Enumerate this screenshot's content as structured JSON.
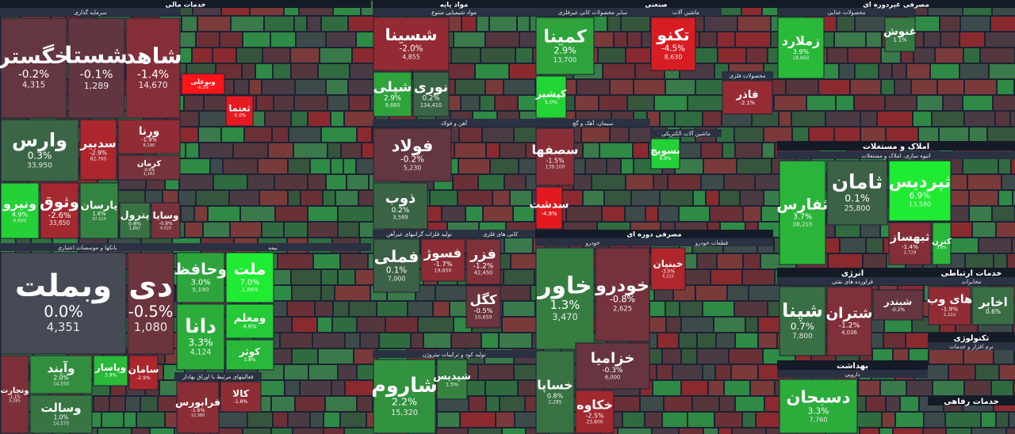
{
  "sectors": [
    {
      "title": "خدمات مالی",
      "groups": [
        {
          "title": "سرمایه گذاری",
          "tiles": [
            {
              "name": "خگستر",
              "change": -0.2,
              "change_label": "-0.2%",
              "volume": "4,315"
            },
            {
              "name": "شستا",
              "change": -0.1,
              "change_label": "-0.1%",
              "volume": "1,289"
            },
            {
              "name": "شاهد",
              "change": -1.4,
              "change_label": "-1.4%",
              "volume": "14,670"
            },
            {
              "name": "وارس",
              "change": 0.3,
              "change_label": "0.3%",
              "volume": "33,950"
            },
            {
              "name": "سدبیر",
              "change": -2.9,
              "change_label": "-2.9%",
              "volume": "82,700"
            },
            {
              "name": "ورنا",
              "change": -1.9,
              "change_label": "-1.9%",
              "volume": "6,190"
            },
            {
              "name": "کرمان",
              "change": -0.9,
              "change_label": "-0.9%",
              "volume": "1,142"
            },
            {
              "name": "ونیرو",
              "change": 4.9,
              "change_label": "4.9%",
              "volume": "6,600"
            },
            {
              "name": "وثوق",
              "change": -2.6,
              "change_label": "-2.6%",
              "volume": "33,850"
            },
            {
              "name": "پارسان",
              "change": 1.6,
              "change_label": "1.6%",
              "volume": "37,110"
            },
            {
              "name": "پترول",
              "change": 0.8,
              "change_label": "0.8%",
              "volume": "1,897"
            },
            {
              "name": "وسایا",
              "change": -0.9,
              "change_label": "-0.9%",
              "volume": "4,020"
            },
            {
              "name": "ویوعلی",
              "change": -6.3,
              "change_label": "-6.3%"
            },
            {
              "name": "ثعتما",
              "change": -5.0,
              "change_label": "-5.0%"
            }
          ]
        },
        {
          "title": "بانکها و موسسات اعتباری",
          "tiles": [
            {
              "name": "وبملت",
              "change": 0.0,
              "change_label": "0.0%",
              "volume": "4,351"
            },
            {
              "name": "دی",
              "change": -0.5,
              "change_label": "-0.5%",
              "volume": "1,080"
            },
            {
              "name": "وتجارت",
              "change": -1.1,
              "change_label": "-1.1%",
              "volume": "5,285"
            },
            {
              "name": "وآیند",
              "change": 2.0,
              "change_label": "2.0%",
              "volume": "14,550"
            },
            {
              "name": "وسالت",
              "change": 1.0,
              "change_label": "1.0%",
              "volume": "14,570"
            },
            {
              "name": "وپاسار",
              "change": 3.9,
              "change_label": "3.9%"
            },
            {
              "name": "سامان",
              "change": -2.9,
              "change_label": "-2.9%"
            }
          ]
        },
        {
          "title": "بیمه",
          "tiles": [
            {
              "name": "وحافظ",
              "change": 3.0,
              "change_label": "3.0%",
              "volume": "5,190"
            },
            {
              "name": "ملت",
              "change": 7.0,
              "change_label": "7.0%",
              "volume": "1,869"
            },
            {
              "name": "ومعلم",
              "change": 4.6,
              "change_label": "4.6%"
            },
            {
              "name": "کوثر",
              "change": 3.8,
              "change_label": "3.8%"
            },
            {
              "name": "دانا",
              "change": 3.3,
              "change_label": "3.3%",
              "volume": "4,124"
            }
          ]
        },
        {
          "title": "فعالیتهای مرتبط با اوراق بهادار",
          "tiles": [
            {
              "name": "فرابورس",
              "change": -1.6,
              "change_label": "-1.6%",
              "volume": "12,380"
            },
            {
              "name": "کالا",
              "change": -1.8,
              "change_label": "-1.8%"
            }
          ]
        }
      ]
    },
    {
      "title": "مواد پایه",
      "groups": [
        {
          "title": "مواد شیمیایی متنوع",
          "tiles": [
            {
              "name": "شسینا",
              "change": -2.0,
              "change_label": "-2.0%",
              "volume": "4,855"
            },
            {
              "name": "شپلی",
              "change": 2.9,
              "change_label": "2.9%",
              "volume": "9,680"
            },
            {
              "name": "نوری",
              "change": 0.2,
              "change_label": "0.2%",
              "volume": "134,410"
            }
          ]
        },
        {
          "title": "آهن و فولاد",
          "tiles": [
            {
              "name": "فولاد",
              "change": -0.2,
              "change_label": "-0.2%",
              "volume": "5,230"
            },
            {
              "name": "ذوب",
              "change": 0.2,
              "change_label": "0.2%",
              "volume": "3,589"
            }
          ]
        },
        {
          "title": "تولید فلزات گرانبهای غیرآهن",
          "tiles": [
            {
              "name": "فملی",
              "change": 0.1,
              "change_label": "0.1%",
              "volume": "7,000"
            },
            {
              "name": "فسوژ",
              "change": -1.7,
              "change_label": "-1.7%",
              "volume": "19,650"
            }
          ]
        },
        {
          "title": "کانی های فلزی",
          "tiles": [
            {
              "name": "فزر",
              "change": -1.2,
              "change_label": "-1.2%",
              "volume": "42,450"
            },
            {
              "name": "کگل",
              "change": -0.5,
              "change_label": "-0.5%",
              "volume": "10,650"
            }
          ]
        },
        {
          "title": "تولید کود و ترکیبات نیتروژن",
          "tiles": [
            {
              "name": "شاروم",
              "change": 2.2,
              "change_label": "2.2%",
              "volume": "15,320"
            },
            {
              "name": "شپدیس",
              "change": 1.5,
              "change_label": "1.5%"
            }
          ]
        }
      ]
    },
    {
      "title": "صنعتی",
      "groups": [
        {
          "title": "سایر محصولات کانی غیرفلزی",
          "tiles": [
            {
              "name": "کمینا",
              "change": 2.9,
              "change_label": "2.9%",
              "volume": "13,700"
            },
            {
              "name": "کپشیر",
              "change": 5.0,
              "change_label": "5.0%"
            }
          ]
        },
        {
          "title": "سیمان، آهک و گچ",
          "tiles": [
            {
              "name": "سصفها",
              "change": -1.5,
              "change_label": "-1.5%",
              "volume": "139,100"
            },
            {
              "name": "سدشت",
              "change": -4.9,
              "change_label": "-4.9%"
            }
          ]
        },
        {
          "title": "ماشین آلات",
          "tiles": [
            {
              "name": "تکنو",
              "change": -4.5,
              "change_label": "-4.5%",
              "volume": "8,630"
            }
          ]
        },
        {
          "title": "محصولات فلزی",
          "tiles": [
            {
              "name": "فاذر",
              "change": -2.1,
              "change_label": "-2.1%"
            }
          ]
        },
        {
          "title": "ماشین آلات الکتریکی",
          "tiles": [
            {
              "name": "بسویچ",
              "change": 4.9,
              "change_label": "4.9%"
            }
          ]
        }
      ]
    },
    {
      "title": "مصرفی دوره ای",
      "groups": [
        {
          "title": "خودرو",
          "tiles": [
            {
              "name": "خاور",
              "change": 1.3,
              "change_label": "1.3%",
              "volume": "3,470"
            },
            {
              "name": "خودرو",
              "change": -0.8,
              "change_label": "-0.8%",
              "volume": "2,625"
            },
            {
              "name": "خزامیا",
              "change": -0.3,
              "change_label": "-0.3%",
              "volume": "6,000"
            },
            {
              "name": "خساپا",
              "change": 0.8,
              "change_label": "0.8%",
              "volume": "2,285"
            },
            {
              "name": "خکاوه",
              "change": -2.5,
              "change_label": "-2.5%",
              "volume": "23,800"
            }
          ]
        },
        {
          "title": "قطعات خودرو",
          "tiles": [
            {
              "name": "خبنیان",
              "change": -3.0,
              "change_label": "-3.0%",
              "volume": "6,210"
            }
          ]
        }
      ]
    },
    {
      "title": "مصرفی غیردوره ای",
      "groups": [
        {
          "title": "محصولات غذایی",
          "tiles": [
            {
              "name": "زملارد",
              "change": 3.9,
              "change_label": "3.9%",
              "volume": "18,850"
            },
            {
              "name": "غنوش",
              "change": 1.1,
              "change_label": "1.1%"
            }
          ]
        }
      ]
    },
    {
      "title": "املاک و مستغلات",
      "groups": [
        {
          "title": "انبوه سازی، املاک و مستغلات",
          "tiles": [
            {
              "name": "ثفارس",
              "change": 3.7,
              "change_label": "3.7%",
              "volume": "38,210"
            },
            {
              "name": "ثامان",
              "change": 0.1,
              "change_label": "0.1%",
              "volume": "25,800"
            },
            {
              "name": "ثپردیس",
              "change": 6.9,
              "change_label": "6.9%",
              "volume": "13,580"
            },
            {
              "name": "ثبهساز",
              "change": -1.4,
              "change_label": "-1.4%",
              "volume": "2,729"
            },
            {
              "name": "کترن",
              "change": 3.8,
              "change_label": "3.8%"
            }
          ]
        }
      ]
    },
    {
      "title": "انرژی",
      "groups": [
        {
          "title": "فراورده های نفتی",
          "tiles": [
            {
              "name": "شپنا",
              "change": 0.7,
              "change_label": "0.7%",
              "volume": "7,800"
            },
            {
              "name": "شتران",
              "change": -1.2,
              "change_label": "-1.2%",
              "volume": "4,036"
            },
            {
              "name": "شبندر",
              "change": -0.2,
              "change_label": "-0.2%"
            }
          ]
        }
      ]
    },
    {
      "title": "بهداشت",
      "groups": [
        {
          "title": "دارویی",
          "tiles": [
            {
              "name": "دسبحان",
              "change": 3.3,
              "change_label": "3.3%",
              "volume": "7,760"
            }
          ]
        }
      ]
    },
    {
      "title": "خدمات ارتباطی",
      "groups": [
        {
          "title": "مخابرات",
          "tiles": [
            {
              "name": "های وب",
              "change": -1.9,
              "change_label": "-1.9%",
              "volume": "2,222"
            },
            {
              "name": "اخابر",
              "change": 0.6,
              "change_label": "0.6%"
            }
          ]
        }
      ]
    },
    {
      "title": "تکنولوژی",
      "groups": [
        {
          "title": "نرم افزار و خدمات",
          "tiles": []
        }
      ]
    },
    {
      "title": "خدمات رفاهی",
      "groups": []
    }
  ]
}
